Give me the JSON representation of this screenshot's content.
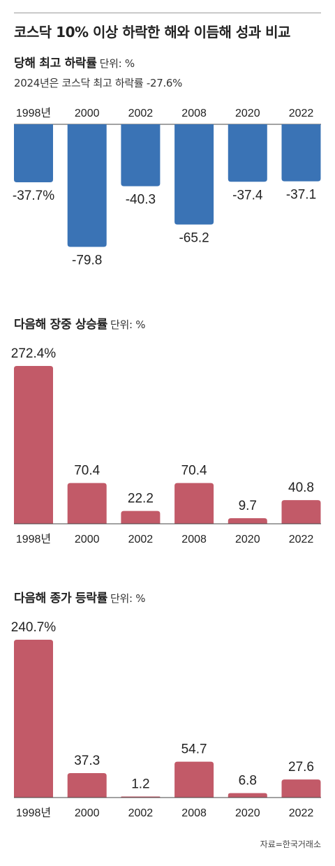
{
  "title": "코스닥 10% 이상 하락한 해와 이듬해 성과 비교",
  "source": "자료=한국거래소",
  "colors": {
    "decline": "#3a73b5",
    "gain": "#c25a68",
    "axis": "#444444"
  },
  "chart_data": [
    {
      "type": "bar",
      "title": "당해 최고 하락률",
      "unit": "단위: %",
      "note": "2024년은 코스닥 최고 하락률 -27.6%",
      "categories": [
        "1998년",
        "2000",
        "2002",
        "2008",
        "2020",
        "2022"
      ],
      "values": [
        -37.7,
        -79.8,
        -40.3,
        -65.2,
        -37.4,
        -37.1
      ],
      "labels": [
        "-37.7%",
        "-79.8",
        "-40.3",
        "-65.2",
        "-37.4",
        "-37.1"
      ]
    },
    {
      "type": "bar",
      "title": "다음해 장중 상승률",
      "unit": "단위: %",
      "categories": [
        "1998년",
        "2000",
        "2002",
        "2008",
        "2020",
        "2022"
      ],
      "values": [
        272.4,
        70.4,
        22.2,
        70.4,
        9.7,
        40.8
      ],
      "labels": [
        "272.4%",
        "70.4",
        "22.2",
        "70.4",
        "9.7",
        "40.8"
      ]
    },
    {
      "type": "bar",
      "title": "다음해 종가 등락률",
      "unit": "단위: %",
      "categories": [
        "1998년",
        "2000",
        "2002",
        "2008",
        "2020",
        "2022"
      ],
      "values": [
        240.7,
        37.3,
        1.2,
        54.7,
        6.8,
        27.6
      ],
      "labels": [
        "240.7%",
        "37.3",
        "1.2",
        "54.7",
        "6.8",
        "27.6"
      ]
    }
  ]
}
